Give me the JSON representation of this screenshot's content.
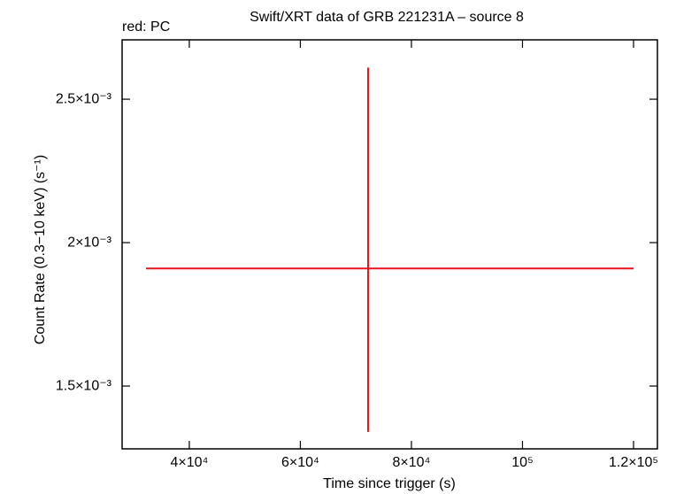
{
  "chart_data": {
    "type": "errorbar",
    "title": "Swift/XRT data of GRB 221231A – source 8",
    "annotation": "red: PC",
    "x_label": "Time since trigger (s)",
    "y_label": "Count Rate (0.3−10 keV) (s⁻¹)",
    "series": [
      {
        "color": "#e8141a",
        "x": [
          72200
        ],
        "xerr_minus": [
          40000
        ],
        "xerr_plus": [
          47800
        ],
        "values": [
          0.00191
        ],
        "yerr_minus": [
          0.00057
        ],
        "yerr_plus": [
          0.0007
        ]
      }
    ],
    "xlim": [
      27900,
      124300
    ],
    "xticks": [
      {
        "value": 40000,
        "label": "4×10⁴"
      },
      {
        "value": 60000,
        "label": "6×10⁴"
      },
      {
        "value": 80000,
        "label": "8×10⁴"
      },
      {
        "value": 100000,
        "label": "10⁵"
      },
      {
        "value": 120000,
        "label": "1.2×10⁵"
      }
    ],
    "ylim": [
      0.001281,
      0.002707
    ],
    "yticks": [
      {
        "value": 0.0015,
        "label": "1.5×10⁻³"
      },
      {
        "value": 0.002,
        "label": "2×10⁻³"
      },
      {
        "value": 0.0025,
        "label": "2.5×10⁻³"
      }
    ]
  }
}
